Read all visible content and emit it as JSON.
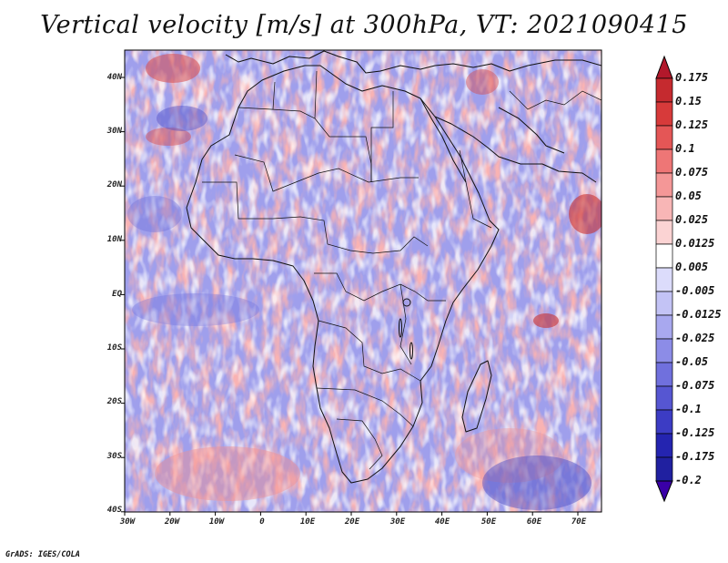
{
  "title": "Vertical velocity [m/s] at 300hPa, VT: 2021090415",
  "lat_labels": [
    "40N",
    "30N",
    "20N",
    "10N",
    "EQ",
    "10S",
    "20S",
    "30S",
    "40S"
  ],
  "lon_labels": [
    "30W",
    "20W",
    "10W",
    "0",
    "10E",
    "20E",
    "30E",
    "40E",
    "50E",
    "60E",
    "70E"
  ],
  "colorbar": {
    "levels": [
      "0.175",
      "0.15",
      "0.125",
      "0.1",
      "0.075",
      "0.05",
      "0.025",
      "0.0125",
      "0.005",
      "-0.005",
      "-0.0125",
      "-0.025",
      "-0.05",
      "-0.075",
      "-0.1",
      "-0.125",
      "-0.175",
      "-0.2"
    ],
    "colors": [
      "#b2182b",
      "#c52a2f",
      "#d73a3a",
      "#e45656",
      "#ee7676",
      "#f49797",
      "#f8b6b6",
      "#fbd3d3",
      "#ffffff",
      "#dcdcfb",
      "#c3c3f5",
      "#a8a8ef",
      "#8c8ce7",
      "#7070dd",
      "#5656d2",
      "#3c3cc4",
      "#2424b0",
      "#2020a0",
      "#3a00a8"
    ]
  },
  "credit": "GrADS: IGES/COLA"
}
